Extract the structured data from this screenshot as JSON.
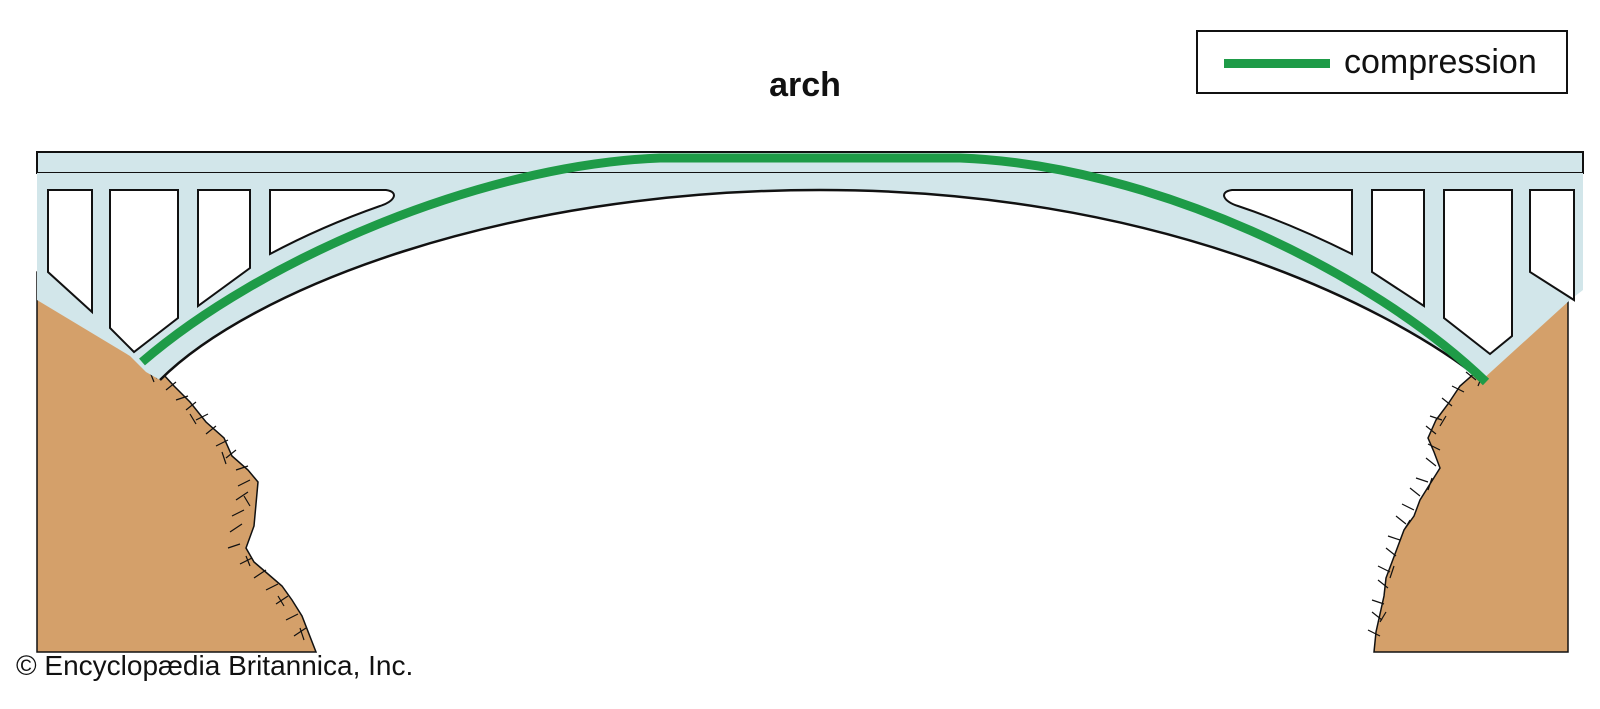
{
  "title": "arch",
  "legend": {
    "label": "compression",
    "color": "#1e9b47"
  },
  "credit": "© Encyclopædia Britannica, Inc.",
  "colors": {
    "structure_fill": "#d2e6ea",
    "outline": "#111111",
    "ground": "#d4a06a",
    "compression": "#1e9b47",
    "background": "#ffffff"
  }
}
